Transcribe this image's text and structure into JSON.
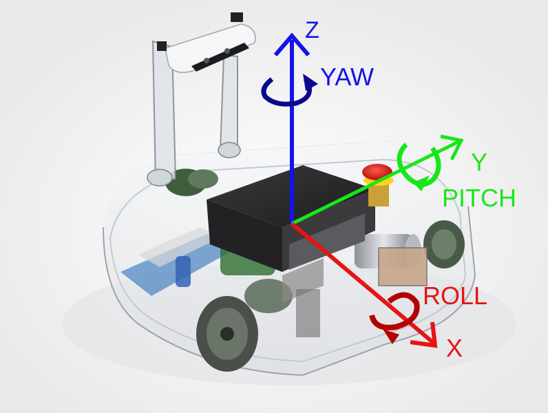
{
  "colors": {
    "z": "#1414e6",
    "y": "#19e619",
    "x": "#e61414",
    "yaw_arrow": "#0a0a8c",
    "roll_arrow": "#b40000",
    "pitch_arrow": "#19e619"
  },
  "axes": {
    "z": {
      "label": "Z",
      "rotation_label": "YAW"
    },
    "y": {
      "label": "Y",
      "rotation_label": "PITCH"
    },
    "x": {
      "label": "X",
      "rotation_label": "ROLL"
    }
  },
  "robot": {
    "device_icon": "robot-base-illustration",
    "camera_icon": "depth-camera-illustration",
    "emergency_stop_icon": "emergency-stop-button-illustration"
  }
}
